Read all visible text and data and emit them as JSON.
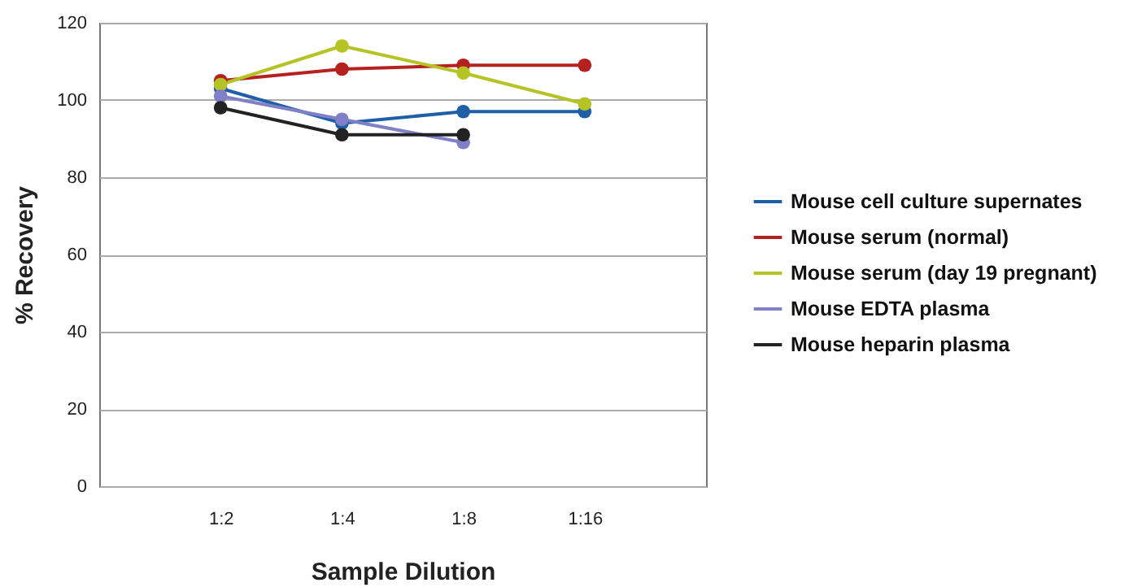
{
  "chart_data": {
    "type": "line",
    "xlabel": "Sample Dilution",
    "ylabel": "% Recovery",
    "categories": [
      "1:2",
      "1:4",
      "1:8",
      "1:16"
    ],
    "ylim": [
      0,
      120
    ],
    "yticks": [
      0,
      20,
      40,
      60,
      80,
      100,
      120
    ],
    "grid": "y",
    "legend": "right",
    "marker": "circle",
    "line_style": "solid",
    "series": [
      {
        "name": "Mouse cell culture supernates",
        "color": "#1f5fa8",
        "values": [
          103,
          94,
          97,
          97
        ]
      },
      {
        "name": "Mouse serum (normal)",
        "color": "#b5211e",
        "values": [
          105,
          108,
          109,
          109
        ]
      },
      {
        "name": "Mouse serum (day 19 pregnant)",
        "color": "#b5c424",
        "values": [
          104,
          114,
          107,
          99
        ]
      },
      {
        "name": "Mouse EDTA plasma",
        "color": "#8080c8",
        "values": [
          101,
          95,
          89,
          null
        ]
      },
      {
        "name": "Mouse heparin plasma",
        "color": "#222222",
        "values": [
          98,
          91,
          91,
          null
        ]
      }
    ]
  }
}
